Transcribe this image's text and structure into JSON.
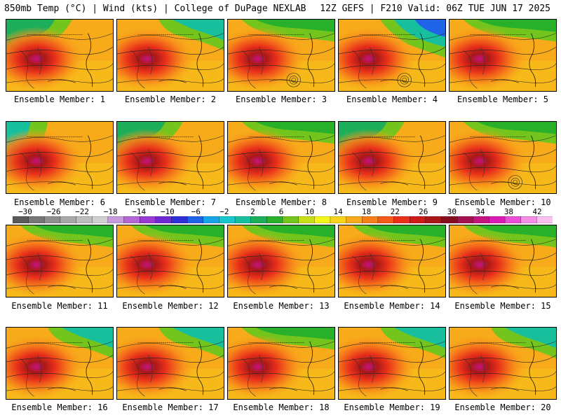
{
  "header": {
    "left": "850mb Temp (°C) | Wind (kts) | College of DuPage NEXLAB",
    "right": "12Z GEFS | F210 Valid: 06Z TUE JUN 17 2025"
  },
  "panels": [
    {
      "label": "Ensemble Member: 1",
      "cold": "nw"
    },
    {
      "label": "Ensemble Member: 2",
      "cold": "ne"
    },
    {
      "label": "Ensemble Member: 3",
      "cold": "n",
      "low": true
    },
    {
      "label": "Ensemble Member: 4",
      "cold": "ne-strong",
      "low": true
    },
    {
      "label": "Ensemble Member: 5",
      "cold": "n"
    },
    {
      "label": "Ensemble Member: 6",
      "cold": "w"
    },
    {
      "label": "Ensemble Member: 7",
      "cold": "nw"
    },
    {
      "label": "Ensemble Member: 8",
      "cold": "n"
    },
    {
      "label": "Ensemble Member: 9",
      "cold": "nw"
    },
    {
      "label": "Ensemble Member: 10",
      "cold": "n",
      "low": true
    },
    {
      "label": "Ensemble Member: 11",
      "cold": "n"
    },
    {
      "label": "Ensemble Member: 12",
      "cold": "n"
    },
    {
      "label": "Ensemble Member: 13",
      "cold": "n"
    },
    {
      "label": "Ensemble Member: 14",
      "cold": "n"
    },
    {
      "label": "Ensemble Member: 15",
      "cold": "n"
    },
    {
      "label": "Ensemble Member: 16",
      "cold": "ne"
    },
    {
      "label": "Ensemble Member: 17",
      "cold": "ne"
    },
    {
      "label": "Ensemble Member: 18",
      "cold": "n"
    },
    {
      "label": "Ensemble Member: 19",
      "cold": "ne"
    },
    {
      "label": "Ensemble Member: 20",
      "cold": "ne"
    }
  ],
  "colorbar": {
    "ticks": [
      "−30",
      "−26",
      "−22",
      "−18",
      "−14",
      "−10",
      "−6",
      "−2",
      "2",
      "6",
      "10",
      "14",
      "18",
      "22",
      "26",
      "30",
      "34",
      "38",
      "42"
    ],
    "colors": [
      "#5a5a5a",
      "#767676",
      "#8f8f8f",
      "#a8a8a8",
      "#bcbcbc",
      "#d0d0d0",
      "#c79adb",
      "#b567d6",
      "#9b3ad1",
      "#6e2ad1",
      "#3030d9",
      "#1f63e6",
      "#1aa4e8",
      "#17c6cf",
      "#18bf9d",
      "#1cae5a",
      "#29b02b",
      "#73c41c",
      "#c7df18",
      "#f5f51a",
      "#f7d41a",
      "#f7aa1a",
      "#f7801a",
      "#f45b1a",
      "#e8301a",
      "#cf1a1a",
      "#a91818",
      "#860f1f",
      "#a5104f",
      "#c41480",
      "#de1ab6",
      "#ec4fd7",
      "#f58de5",
      "#fbc2f1"
    ]
  }
}
